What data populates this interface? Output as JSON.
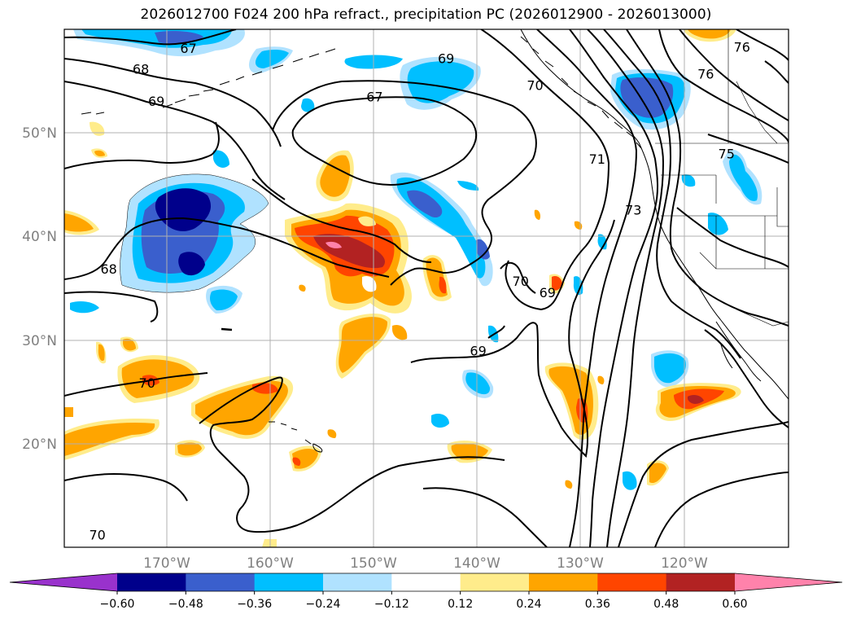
{
  "title": "2026012700 F024 200 hPa refract., precipitation PC (2026012900 - 2026013000)",
  "map": {
    "lat_labels": [
      "50°N",
      "40°N",
      "30°N",
      "20°N"
    ],
    "lon_labels": [
      "170°W",
      "160°W",
      "150°W",
      "140°W",
      "130°W",
      "120°W"
    ],
    "grid": true
  },
  "contour_labels": [
    {
      "text": "67",
      "lon": -168,
      "lat": 58.2
    },
    {
      "text": "68",
      "lon": -172.6,
      "lat": 56.2
    },
    {
      "text": "69",
      "lon": -171.1,
      "lat": 53.1
    },
    {
      "text": "67",
      "lon": -150.0,
      "lat": 53.5
    },
    {
      "text": "69",
      "lon": -143.1,
      "lat": 57.2
    },
    {
      "text": "70",
      "lon": -134.5,
      "lat": 54.6
    },
    {
      "text": "76",
      "lon": -114.5,
      "lat": 58.3
    },
    {
      "text": "76",
      "lon": -118.0,
      "lat": 55.7
    },
    {
      "text": "75",
      "lon": -116.0,
      "lat": 48.0
    },
    {
      "text": "73",
      "lon": -125.0,
      "lat": 42.6
    },
    {
      "text": "71",
      "lon": -128.5,
      "lat": 47.5
    },
    {
      "text": "70",
      "lon": -135.9,
      "lat": 35.7
    },
    {
      "text": "69",
      "lon": -133.3,
      "lat": 34.6
    },
    {
      "text": "69",
      "lon": -140.0,
      "lat": 29.0
    },
    {
      "text": "68",
      "lon": -175.7,
      "lat": 36.9
    },
    {
      "text": "70",
      "lon": -172.0,
      "lat": 25.9
    },
    {
      "text": "70",
      "lon": -176.8,
      "lat": 11.2
    }
  ],
  "colorbar": {
    "ticks": [
      "−0.60",
      "−0.48",
      "−0.36",
      "−0.24",
      "−0.12",
      "0.12",
      "0.24",
      "0.36",
      "0.48",
      "0.60"
    ],
    "levels": [
      -0.6,
      -0.48,
      -0.36,
      -0.24,
      -0.12,
      0.12,
      0.24,
      0.36,
      0.48,
      0.6
    ],
    "colors": [
      "#9932cc",
      "#00008b",
      "#3a5fcd",
      "#00bfff",
      "#b0e2ff",
      "#ffffff",
      "#ffec8b",
      "#ffa500",
      "#ff4500",
      "#b22222",
      "#ff82ab"
    ]
  }
}
